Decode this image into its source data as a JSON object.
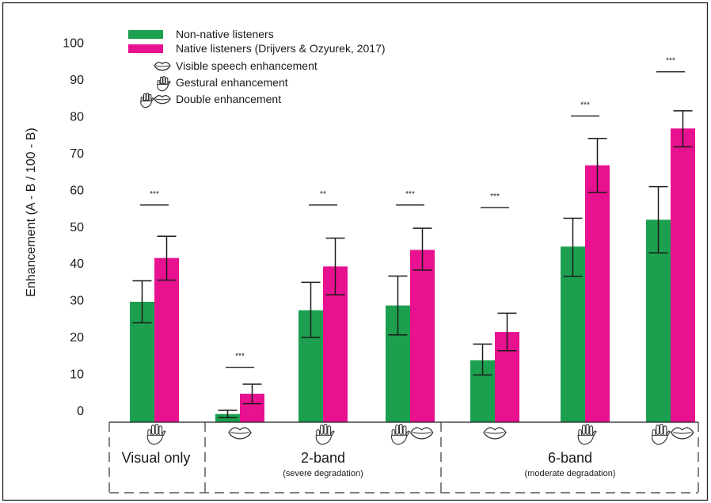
{
  "chart_data": {
    "type": "bar",
    "ylabel": "Enhancement (A - B / 100 - B)",
    "yticks": [
      0,
      10,
      20,
      30,
      40,
      50,
      60,
      70,
      80,
      90,
      100
    ],
    "ylim": [
      -3,
      106
    ],
    "legend_position": "top-left",
    "series": [
      {
        "name": "Non-native listeners",
        "color": "#1ca04f",
        "values": [
          29.5,
          -1,
          27.2,
          28.5,
          13.6,
          44.5,
          51.8
        ],
        "err_low": [
          23.8,
          -2,
          19.8,
          20.5,
          9.6,
          36.4,
          42.8
        ],
        "err_high": [
          35.2,
          0,
          34.8,
          36.5,
          18,
          52.2,
          60.8
        ]
      },
      {
        "name": "Native listeners (Drijvers & Ozyurek, 2017)",
        "color": "#e8118f",
        "values": [
          41.4,
          4.5,
          39.1,
          43.6,
          21.3,
          66.6,
          76.6
        ],
        "err_low": [
          35.4,
          1.8,
          31.4,
          38.1,
          16.2,
          59.2,
          71.6
        ],
        "err_high": [
          47.3,
          7.1,
          46.8,
          49.5,
          26.4,
          73.9,
          81.4
        ]
      }
    ],
    "significance": [
      "***",
      "***",
      "**",
      "***",
      "***",
      "***",
      "***"
    ],
    "category_icons": [
      [
        "hand"
      ],
      [
        "lips"
      ],
      [
        "hand"
      ],
      [
        "hand",
        "lips"
      ],
      [
        "lips"
      ],
      [
        "hand"
      ],
      [
        "hand",
        "lips"
      ]
    ],
    "legend_icons": [
      {
        "label": "Visible speech enhancement",
        "icons": [
          "lips"
        ]
      },
      {
        "label": "Gestural enhancement",
        "icons": [
          "hand"
        ]
      },
      {
        "label": "Double enhancement",
        "icons": [
          "hand",
          "lips"
        ]
      }
    ],
    "groups": [
      {
        "label": "Visual only",
        "sublabel": ""
      },
      {
        "label": "2-band",
        "sublabel": "(severe degradation)"
      },
      {
        "label": "6-band",
        "sublabel": "(moderate degradation)"
      }
    ]
  }
}
